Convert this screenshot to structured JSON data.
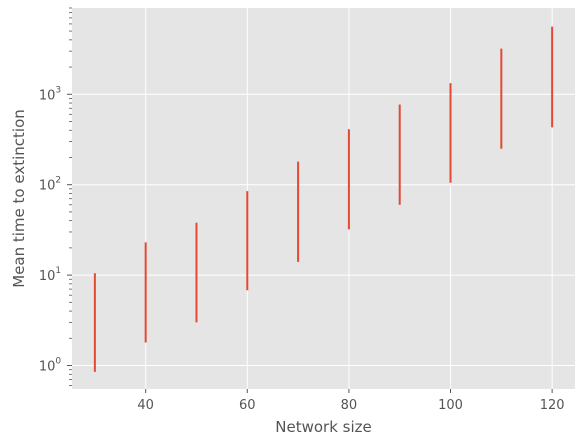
{
  "chart_data": {
    "type": "errorbar",
    "title": "",
    "xlabel": "Network size",
    "ylabel": "Mean time to extinction",
    "x_scale": "linear",
    "y_scale": "log",
    "xlim": [
      25.5,
      124.5
    ],
    "ylim": [
      0.55,
      9000
    ],
    "grid": true,
    "legend": "none",
    "colors": {
      "background": "#E5E5E5",
      "grid": "#FFFFFF",
      "bars": "#E24A33",
      "text": "#555555"
    },
    "x_ticks": [
      {
        "value": 40,
        "label": "40"
      },
      {
        "value": 60,
        "label": "60"
      },
      {
        "value": 80,
        "label": "80"
      },
      {
        "value": 100,
        "label": "100"
      },
      {
        "value": 120,
        "label": "120"
      }
    ],
    "y_ticks": [
      {
        "value": 1,
        "base": "10",
        "exp": "0"
      },
      {
        "value": 10,
        "base": "10",
        "exp": "1"
      },
      {
        "value": 100,
        "base": "10",
        "exp": "2"
      },
      {
        "value": 1000,
        "base": "10",
        "exp": "3"
      }
    ],
    "intervals": [
      {
        "x": 30,
        "low": 0.85,
        "high": 10.5
      },
      {
        "x": 40,
        "low": 1.8,
        "high": 23
      },
      {
        "x": 50,
        "low": 3.0,
        "high": 38
      },
      {
        "x": 60,
        "low": 6.8,
        "high": 85
      },
      {
        "x": 70,
        "low": 14,
        "high": 180
      },
      {
        "x": 80,
        "low": 32,
        "high": 410
      },
      {
        "x": 90,
        "low": 60,
        "high": 770
      },
      {
        "x": 100,
        "low": 105,
        "high": 1330
      },
      {
        "x": 110,
        "low": 250,
        "high": 3200
      },
      {
        "x": 120,
        "low": 430,
        "high": 5600
      }
    ]
  }
}
